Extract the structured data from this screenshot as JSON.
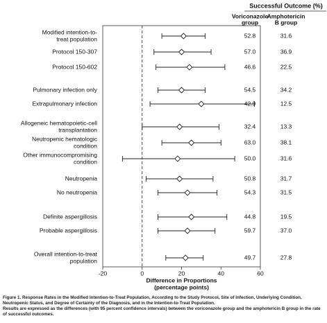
{
  "chart_data": {
    "type": "forest",
    "header": "Successful Outcome (%)",
    "categories": [
      [
        "Modified intention-to-",
        "treat population"
      ],
      [
        "Protocol 150-307"
      ],
      [
        "Protocol 150-602"
      ],
      [
        "Pulmonary infection only"
      ],
      [
        "Extrapulmonary infection"
      ],
      [
        "Allogeneic hematopoietic-cell",
        "transplantation"
      ],
      [
        "Neutropenic hematologic",
        "condition"
      ],
      [
        "Other immunocompromising",
        "condition"
      ],
      [
        "Neutropenia"
      ],
      [
        "No neutropenia"
      ],
      [
        "Definite aspergillosis"
      ],
      [
        "Probable aspergillosis"
      ],
      [
        "Overall intention-to-treat",
        "population"
      ]
    ],
    "values": [
      21,
      20,
      24,
      20,
      30,
      19,
      25,
      18,
      19,
      23,
      25,
      23,
      22
    ],
    "lower": [
      10,
      6,
      7,
      8,
      4,
      0,
      10,
      -10,
      2,
      8,
      8,
      8,
      12
    ],
    "upper": [
      32,
      35,
      42,
      32,
      57,
      39,
      40,
      47,
      36,
      38,
      43,
      37,
      31
    ],
    "columns": [
      {
        "name": [
          "Voriconazole",
          "group"
        ],
        "values": [
          52.8,
          57.0,
          46.6,
          54.5,
          42.9,
          32.4,
          63.0,
          50.0,
          50.8,
          54.3,
          44.8,
          59.7,
          49.7
        ],
        "value_labels": [
          "52.8",
          "57.0",
          "46.6",
          "54.5",
          "42.9",
          "32.4",
          "63.0",
          "50.0",
          "50.8",
          "54.3",
          "44.8",
          "59.7",
          "49.7"
        ]
      },
      {
        "name": [
          "Amphotericin",
          "B group"
        ],
        "values": [
          31.6,
          36.9,
          22.5,
          34.2,
          12.5,
          13.3,
          38.1,
          31.6,
          31.7,
          31.5,
          19.5,
          37.0,
          27.8
        ],
        "value_labels": [
          "31.6",
          "36.9",
          "22.5",
          "34.2",
          "12.5",
          "13.3",
          "38.1",
          "31.6",
          "31.7",
          "31.5",
          "19.5",
          "37.0",
          "27.8"
        ]
      }
    ],
    "xlim": [
      -20,
      60
    ],
    "xticks": [
      -20,
      0,
      20,
      40,
      60
    ],
    "reference_line": 0,
    "xlabel": [
      "Difference in Proportions",
      "(percentage points)"
    ],
    "caption": [
      "Figure 1. Response Rates in the Modified Intention-to-Treat Population, According to the Study Protocol, Site of Infection, Underlying Condition, Neutropenic Status, and Degree of Certainty of the Diagnosis, and in the Intention-to-Treat Population.",
      "Results are expressed as the differences (with 95 percent confidence intervals) between the voriconazole group and the amphotericin B group in the rate of successful outcomes."
    ]
  }
}
